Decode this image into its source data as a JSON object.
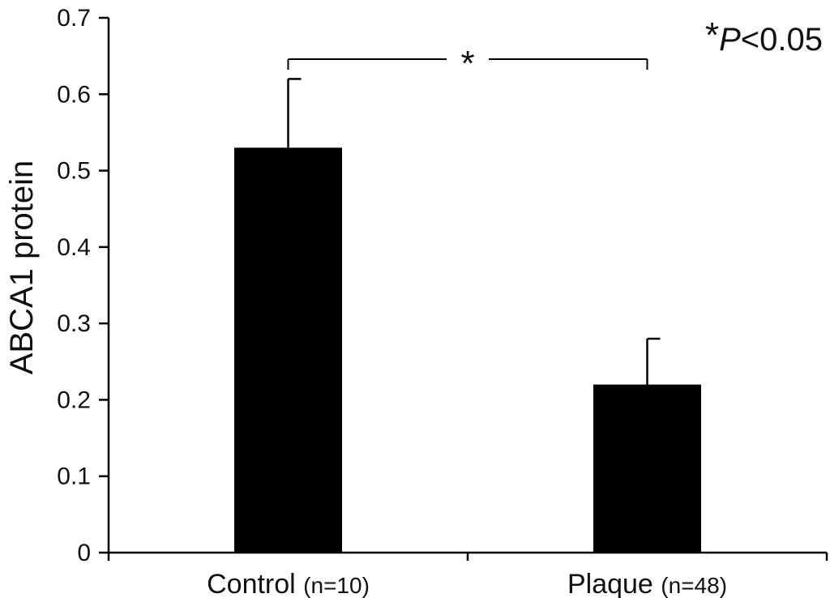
{
  "chart_data": {
    "type": "bar",
    "categories": [
      "Control",
      "Plaque"
    ],
    "category_n": [
      "(n=10)",
      "(n=48)"
    ],
    "values": [
      0.53,
      0.22
    ],
    "error_upper": [
      0.62,
      0.28
    ],
    "ylabel": "ABCA1 protein",
    "ylim": [
      0,
      0.7
    ],
    "yticks": [
      0,
      0.1,
      0.2,
      0.3,
      0.4,
      0.5,
      0.6,
      0.7
    ],
    "ytick_labels": [
      "0",
      "0.1",
      "0.2",
      "0.3",
      "0.4",
      "0.5",
      "0.6",
      "0.7"
    ],
    "bar_color": "#000000",
    "significance": {
      "marker": "*",
      "between": [
        "Control",
        "Plaque"
      ]
    },
    "pvalue_note": {
      "star": "*",
      "p": "P",
      "rest": "<0.05"
    },
    "grid": false,
    "legend": "none"
  }
}
